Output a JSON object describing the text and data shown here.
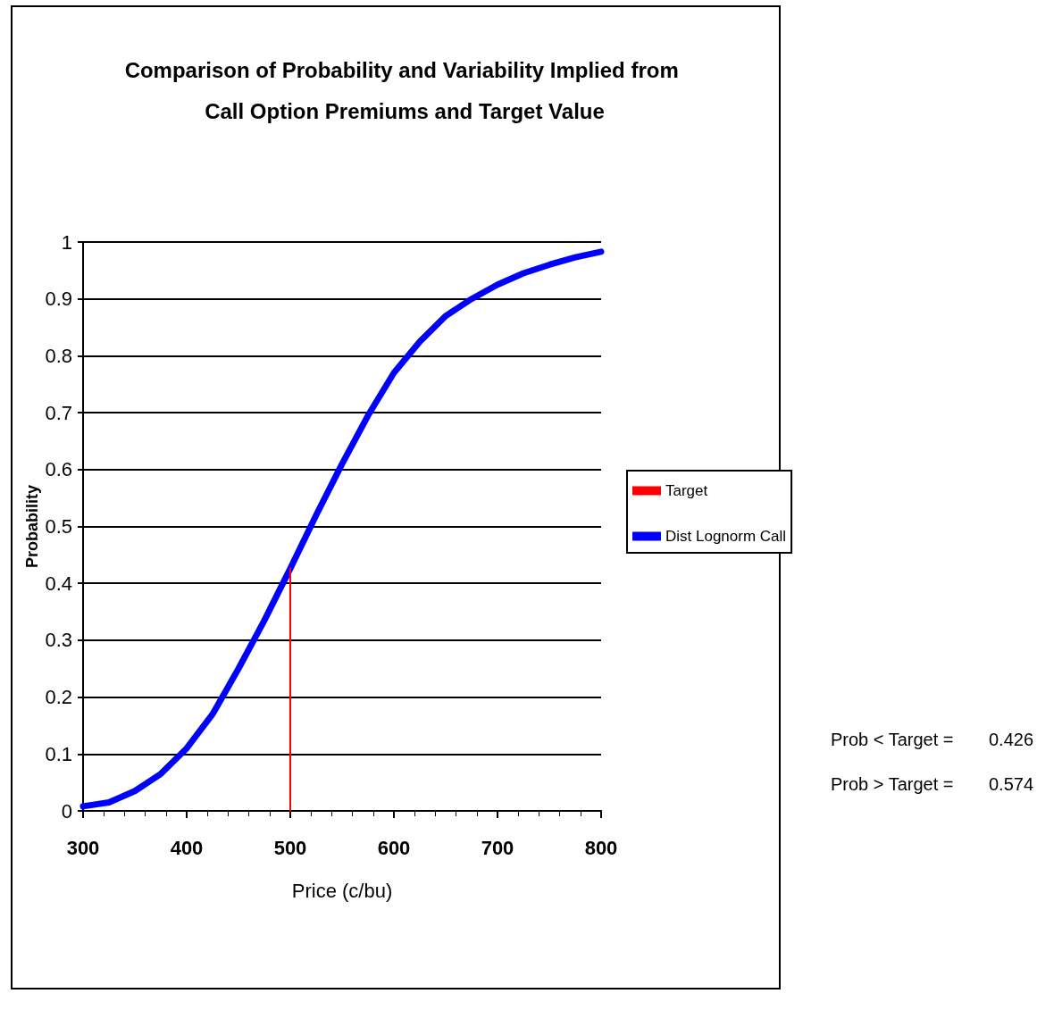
{
  "chart_data": {
    "type": "line",
    "title": "Comparison of Probability and Variability Implied from Call Option Premiums and Target Value",
    "xlabel": "Price (c/bu)",
    "ylabel": "Probability",
    "xlim": [
      300,
      800
    ],
    "xticks": [
      300,
      400,
      500,
      600,
      700,
      800
    ],
    "ylim": [
      0,
      1
    ],
    "yticks": [
      0,
      0.1,
      0.2,
      0.3,
      0.4,
      0.5,
      0.6,
      0.7,
      0.8,
      0.9,
      1
    ],
    "grid": "y",
    "legend": "right",
    "marker": "none",
    "series": [
      {
        "name": "Target",
        "color": "#ff0000",
        "x": [
          500,
          500
        ],
        "values": [
          0,
          0.426
        ]
      },
      {
        "name": "Dist Lognorm Call",
        "color": "#0000ff",
        "x": [
          300,
          325,
          350,
          375,
          400,
          425,
          450,
          475,
          500,
          525,
          550,
          575,
          600,
          625,
          650,
          675,
          700,
          725,
          750,
          775,
          800
        ],
        "values": [
          0.008,
          0.015,
          0.035,
          0.065,
          0.11,
          0.17,
          0.25,
          0.335,
          0.426,
          0.52,
          0.61,
          0.695,
          0.77,
          0.825,
          0.87,
          0.9,
          0.925,
          0.945,
          0.96,
          0.973,
          0.983
        ]
      }
    ],
    "annotations": [
      "Prob < Target =",
      "0.426",
      "Prob > Target =",
      "0.574"
    ]
  }
}
